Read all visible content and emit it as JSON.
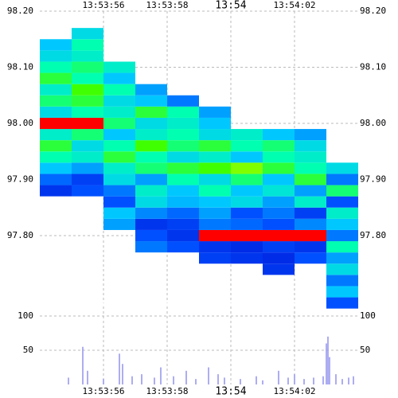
{
  "chart_data": [
    {
      "type": "heatmap",
      "xbins": [
        54,
        55,
        56,
        57,
        58,
        59,
        60,
        61,
        62,
        63,
        64
      ],
      "y": [
        97.68,
        97.7,
        97.72,
        97.74,
        97.76,
        97.78,
        97.8,
        97.82,
        97.84,
        97.86,
        97.88,
        97.9,
        97.92,
        97.94,
        97.96,
        97.98,
        98.0,
        98.02,
        98.04,
        98.06,
        98.08,
        98.1,
        98.12,
        98.14,
        98.16
      ],
      "z": [
        [
          null,
          null,
          null,
          null,
          null,
          null,
          null,
          null,
          null,
          15
        ],
        [
          null,
          null,
          null,
          null,
          null,
          null,
          null,
          null,
          null,
          30
        ],
        [
          null,
          null,
          null,
          null,
          null,
          null,
          null,
          null,
          null,
          20
        ],
        [
          null,
          null,
          null,
          null,
          null,
          null,
          null,
          10,
          null,
          35
        ],
        [
          null,
          null,
          null,
          null,
          null,
          12,
          10,
          8,
          15,
          25
        ],
        [
          null,
          null,
          null,
          20,
          15,
          10,
          8,
          12,
          10,
          45
        ],
        [
          null,
          null,
          null,
          15,
          10,
          90,
          95,
          95,
          90,
          20
        ],
        [
          null,
          null,
          25,
          10,
          12,
          20,
          18,
          15,
          22,
          30
        ],
        [
          null,
          null,
          30,
          22,
          18,
          25,
          15,
          20,
          12,
          40
        ],
        [
          null,
          null,
          15,
          35,
          28,
          30,
          35,
          25,
          40,
          15
        ],
        [
          10,
          15,
          20,
          40,
          30,
          45,
          30,
          38,
          25,
          50
        ],
        [
          18,
          12,
          35,
          25,
          45,
          35,
          50,
          30,
          55,
          20
        ],
        [
          30,
          25,
          40,
          50,
          55,
          60,
          65,
          55,
          45,
          35
        ],
        [
          45,
          40,
          55,
          45,
          35,
          40,
          30,
          45,
          40,
          null
        ],
        [
          55,
          35,
          45,
          60,
          50,
          55,
          45,
          50,
          35,
          null
        ],
        [
          40,
          50,
          30,
          40,
          45,
          35,
          40,
          30,
          25,
          null
        ],
        [
          92,
          90,
          50,
          35,
          40,
          30,
          null,
          null,
          null,
          null
        ],
        [
          35,
          45,
          40,
          55,
          45,
          25,
          null,
          null,
          null,
          null
        ],
        [
          50,
          55,
          35,
          30,
          20,
          null,
          null,
          null,
          null,
          null
        ],
        [
          40,
          60,
          45,
          25,
          null,
          null,
          null,
          null,
          null,
          null
        ],
        [
          55,
          45,
          30,
          null,
          null,
          null,
          null,
          null,
          null,
          null
        ],
        [
          45,
          50,
          40,
          null,
          null,
          null,
          null,
          null,
          null,
          null
        ],
        [
          35,
          40,
          null,
          null,
          null,
          null,
          null,
          null,
          null,
          null
        ],
        [
          30,
          45,
          null,
          null,
          null,
          null,
          null,
          null,
          null,
          null
        ],
        [
          null,
          35,
          null,
          null,
          null,
          null,
          null,
          null,
          null,
          null
        ]
      ],
      "xlim": [
        54,
        64
      ],
      "xticks": [
        {
          "value": 56,
          "label": "13:53:56"
        },
        {
          "value": 58,
          "label": "13:53:58"
        },
        {
          "value": 60,
          "label": "13:54"
        },
        {
          "value": 62,
          "label": "13:54:02"
        }
      ],
      "ylim": [
        97.68,
        98.2
      ],
      "yticks": [
        {
          "value": 97.8,
          "label": "97.80"
        },
        {
          "value": 97.9,
          "label": "97.90"
        },
        {
          "value": 98.0,
          "label": "98.00"
        },
        {
          "value": 98.1,
          "label": "98.10"
        },
        {
          "value": 98.2,
          "label": "98.20"
        }
      ],
      "grid": true
    },
    {
      "type": "bar",
      "x": [
        54.9,
        55.35,
        55.5,
        56.0,
        56.5,
        56.6,
        56.9,
        57.2,
        57.6,
        57.8,
        58.2,
        58.6,
        58.9,
        59.3,
        59.6,
        59.8,
        60.3,
        60.8,
        61.0,
        61.5,
        61.8,
        62.0,
        62.3,
        62.6,
        62.9,
        63.0,
        63.05,
        63.1,
        63.3,
        63.5,
        63.7,
        63.85
      ],
      "values": [
        10,
        55,
        20,
        8,
        45,
        30,
        12,
        15,
        10,
        25,
        12,
        20,
        8,
        25,
        15,
        10,
        8,
        12,
        6,
        20,
        10,
        15,
        8,
        10,
        12,
        60,
        70,
        40,
        15,
        8,
        10,
        12
      ],
      "color": "#9999ee",
      "xlim": [
        54,
        64
      ],
      "xticks": [
        {
          "value": 56,
          "label": "13:53:56"
        },
        {
          "value": 58,
          "label": "13:53:58"
        },
        {
          "value": 60,
          "label": "13:54"
        },
        {
          "value": 62,
          "label": "13:54:02"
        }
      ],
      "ylim": [
        0,
        114
      ],
      "yticks": [
        50,
        100
      ],
      "grid": true
    }
  ]
}
